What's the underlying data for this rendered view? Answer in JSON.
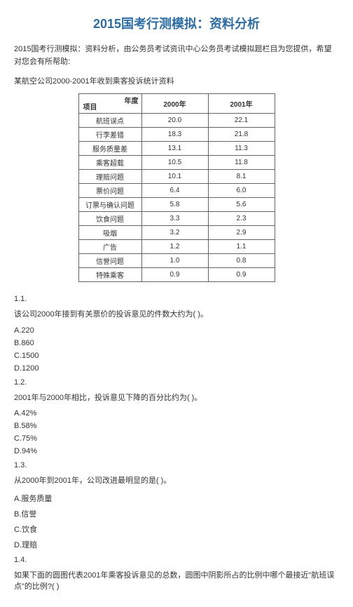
{
  "title": "2015国考行测模拟：资料分析",
  "intro": "2015国考行测模拟：资料分析，由公务员考试资讯中心公务员考试模拟题栏目为您提供，希望对您会有所帮助:",
  "subintro": "某航空公司2000-2001年收到乘客投诉统计资料",
  "table": {
    "corner_top": "年度",
    "corner_bottom": "项目",
    "cols": [
      "2000年",
      "2001年"
    ],
    "rows": [
      {
        "label": "航班误点",
        "a": "20.0",
        "b": "22.1"
      },
      {
        "label": "行李差错",
        "a": "18.3",
        "b": "21.8"
      },
      {
        "label": "服务质量差",
        "a": "13.1",
        "b": "11.3"
      },
      {
        "label": "乘客超载",
        "a": "10.5",
        "b": "11.8"
      },
      {
        "label": "理赔问题",
        "a": "10.1",
        "b": "8.1"
      },
      {
        "label": "票价问题",
        "a": "6.4",
        "b": "6.0"
      },
      {
        "label": "订票与确认问题",
        "a": "5.8",
        "b": "5.6"
      },
      {
        "label": "饮食问题",
        "a": "3.3",
        "b": "2.3"
      },
      {
        "label": "吸烟",
        "a": "3.2",
        "b": "2.9"
      },
      {
        "label": "广告",
        "a": "1.2",
        "b": "1.1"
      },
      {
        "label": "信誉问题",
        "a": "1.0",
        "b": "0.8"
      },
      {
        "label": "特殊乘客",
        "a": "0.9",
        "b": "0.9"
      }
    ]
  },
  "q1": {
    "num": "1.1.",
    "text": "该公司2000年接到有关票价的投诉意见的件数大约为( )。",
    "opts": {
      "A": "A.220",
      "B": "B.860",
      "C": "C.1500",
      "D": "D.1200"
    }
  },
  "q2": {
    "num": "1.2.",
    "text": "2001年与2000年相比，投诉意见下降的百分比约为( )。",
    "opts": {
      "A": "A.42%",
      "B": "B.58%",
      "C": "C.75%",
      "D": "D.94%"
    }
  },
  "q3": {
    "num": "1.3.",
    "text": "从2000年到2001年，公司改进最明显的是( )。",
    "opts": {
      "A": "A.服务质量",
      "B": "B.信誉",
      "C": "C.饮食",
      "D": "D.理赔"
    }
  },
  "q4": {
    "num": "1.4.",
    "text": "如果下面的圆图代表2001年乘客投诉意见的总数，圆图中阴影所占的比例中哪个最接近\"航班误点\"的比例?( )"
  }
}
